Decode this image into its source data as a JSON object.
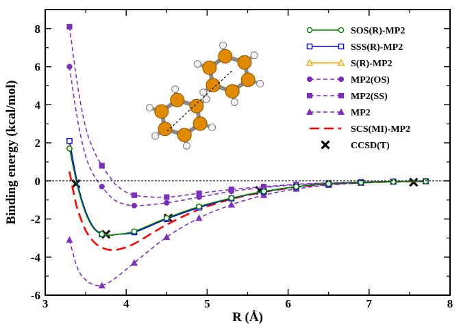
{
  "chart_data": {
    "type": "line",
    "xlabel": "R (Å)",
    "ylabel": "Binding energy (kcal/mol)",
    "xlim": [
      3,
      8
    ],
    "ylim": [
      -6,
      9
    ],
    "x_ticks": [
      "3",
      "4",
      "5",
      "6",
      "7",
      "8"
    ],
    "y_ticks": [
      "-6",
      "-4",
      "-2",
      "0",
      "2",
      "4",
      "6",
      "8"
    ],
    "grid": false,
    "zero_line": true,
    "legend_position": "top-right",
    "series": [
      {
        "name": "SOS(R)-MP2",
        "color": "#008000",
        "dash": "solid",
        "marker": "circle-open",
        "x": [
          3.3,
          3.4,
          3.5,
          3.6,
          3.7,
          3.8,
          3.9,
          4.1,
          4.5,
          4.9,
          5.3,
          5.7,
          6.1,
          6.5,
          6.9,
          7.3,
          7.7
        ],
        "y": [
          1.7,
          -0.3,
          -1.7,
          -2.5,
          -2.8,
          -2.85,
          -2.8,
          -2.65,
          -1.95,
          -1.35,
          -0.9,
          -0.55,
          -0.3,
          -0.15,
          -0.08,
          -0.04,
          -0.02
        ],
        "marker_x": [
          3.3,
          3.7,
          4.1,
          4.5,
          4.9,
          5.3,
          5.7,
          6.1,
          6.5,
          6.9,
          7.3,
          7.7
        ],
        "marker_y": [
          1.7,
          -2.8,
          -2.65,
          -1.95,
          -1.35,
          -0.9,
          -0.55,
          -0.3,
          -0.15,
          -0.08,
          -0.04,
          -0.02
        ]
      },
      {
        "name": "SSS(R)-MP2",
        "color": "#0000ff",
        "dash": "solid",
        "marker": "square-open",
        "x": [
          3.3,
          3.4,
          3.5,
          3.6,
          3.7,
          3.8,
          3.9,
          4.1,
          4.5,
          4.9,
          5.3,
          5.7,
          6.1,
          6.5,
          6.9,
          7.3,
          7.7
        ],
        "y": [
          2.1,
          -0.15,
          -1.6,
          -2.45,
          -2.8,
          -2.85,
          -2.8,
          -2.7,
          -2.0,
          -1.4,
          -0.92,
          -0.57,
          -0.31,
          -0.16,
          -0.08,
          -0.04,
          -0.02
        ],
        "marker_x": [
          3.3,
          3.7,
          4.1,
          4.5,
          4.9,
          5.3,
          5.7,
          6.1,
          6.5,
          6.9,
          7.3,
          7.7
        ],
        "marker_y": [
          2.1,
          -2.8,
          -2.7,
          -2.0,
          -1.4,
          -0.92,
          -0.57,
          -0.31,
          -0.16,
          -0.08,
          -0.04,
          -0.02
        ]
      },
      {
        "name": "S(R)-MP2",
        "color": "#ffa500",
        "dash": "solid",
        "marker": "triangle-open",
        "x": [
          3.3,
          3.4,
          3.5,
          3.6,
          3.7,
          3.8,
          3.9,
          4.1,
          4.5,
          4.9,
          5.3,
          5.7,
          6.1,
          6.5,
          6.9,
          7.3,
          7.7
        ],
        "y": [
          1.8,
          -0.25,
          -1.65,
          -2.45,
          -2.75,
          -2.85,
          -2.8,
          -2.65,
          -1.95,
          -1.35,
          -0.9,
          -0.55,
          -0.3,
          -0.15,
          -0.08,
          -0.04,
          -0.02
        ],
        "marker_x": [
          3.3,
          3.7,
          4.1,
          4.5,
          4.9,
          5.3,
          5.7,
          6.1,
          6.5,
          6.9,
          7.3,
          7.7
        ],
        "marker_y": [
          1.8,
          -2.75,
          -2.65,
          -1.95,
          -1.35,
          -0.9,
          -0.55,
          -0.3,
          -0.15,
          -0.08,
          -0.04,
          -0.02
        ]
      },
      {
        "name": "MP2(OS)",
        "color": "#7b2fbf",
        "dash": "dashed",
        "marker": "circle-filled",
        "x": [
          3.3,
          3.4,
          3.5,
          3.6,
          3.7,
          3.8,
          3.9,
          4.1,
          4.5,
          4.9,
          5.3,
          5.7,
          6.1,
          6.5,
          6.9,
          7.3,
          7.7
        ],
        "y": [
          6.0,
          3.2,
          1.3,
          0.3,
          -0.3,
          -0.8,
          -1.1,
          -1.3,
          -1.15,
          -0.85,
          -0.55,
          -0.35,
          -0.2,
          -0.12,
          -0.06,
          -0.03,
          -0.01
        ],
        "marker_x": [
          3.3,
          3.7,
          4.1,
          4.5,
          4.9,
          5.3,
          5.7,
          6.1,
          6.5,
          6.9,
          7.3,
          7.7
        ],
        "marker_y": [
          6.0,
          -0.3,
          -1.3,
          -1.15,
          -0.85,
          -0.55,
          -0.35,
          -0.2,
          -0.12,
          -0.06,
          -0.03,
          -0.01
        ]
      },
      {
        "name": "MP2(SS)",
        "color": "#7b2fbf",
        "dash": "dashed",
        "marker": "square-filled",
        "x": [
          3.3,
          3.4,
          3.5,
          3.6,
          3.7,
          3.8,
          3.9,
          4.1,
          4.5,
          4.9,
          5.3,
          5.7,
          6.1,
          6.5,
          6.9,
          7.3,
          7.7
        ],
        "y": [
          8.1,
          5.0,
          2.8,
          1.6,
          0.8,
          0.2,
          -0.3,
          -0.75,
          -0.85,
          -0.65,
          -0.45,
          -0.3,
          -0.18,
          -0.1,
          -0.05,
          -0.03,
          -0.01
        ],
        "marker_x": [
          3.3,
          3.7,
          4.1,
          4.5,
          4.9,
          5.3,
          5.7,
          6.1,
          6.5,
          6.9,
          7.3,
          7.7
        ],
        "marker_y": [
          8.1,
          0.8,
          -0.75,
          -0.85,
          -0.65,
          -0.45,
          -0.3,
          -0.18,
          -0.1,
          -0.05,
          -0.03,
          -0.01
        ]
      },
      {
        "name": "MP2",
        "color": "#7b2fbf",
        "dash": "dashed",
        "marker": "triangle-filled",
        "x": [
          3.3,
          3.4,
          3.5,
          3.6,
          3.7,
          3.8,
          3.9,
          4.1,
          4.5,
          4.9,
          5.3,
          5.7,
          6.1,
          6.5,
          6.9,
          7.3,
          7.7
        ],
        "y": [
          -3.1,
          -4.6,
          -5.2,
          -5.45,
          -5.5,
          -5.3,
          -5.0,
          -4.3,
          -2.95,
          -1.95,
          -1.25,
          -0.75,
          -0.42,
          -0.22,
          -0.11,
          -0.05,
          -0.02
        ],
        "marker_x": [
          3.3,
          3.7,
          4.1,
          4.5,
          4.9,
          5.3,
          5.7,
          6.1,
          6.5,
          6.9,
          7.3,
          7.7
        ],
        "marker_y": [
          -3.1,
          -5.5,
          -4.3,
          -2.95,
          -1.95,
          -1.25,
          -0.75,
          -0.42,
          -0.22,
          -0.11,
          -0.05,
          -0.02
        ]
      },
      {
        "name": "SCS(MI)-MP2",
        "color": "#ff0000",
        "dash": "longdash",
        "marker": "none",
        "x": [
          3.3,
          3.35,
          3.4,
          3.5,
          3.6,
          3.7,
          3.8,
          3.9,
          4.1,
          4.5,
          4.9,
          5.3,
          5.7,
          6.1,
          6.5,
          6.9,
          7.3,
          7.7
        ],
        "y": [
          0.5,
          -0.6,
          -1.5,
          -2.6,
          -3.2,
          -3.5,
          -3.62,
          -3.6,
          -3.3,
          -2.3,
          -1.5,
          -0.95,
          -0.58,
          -0.32,
          -0.17,
          -0.09,
          -0.04,
          -0.02
        ]
      },
      {
        "name": "CCSD(T)",
        "color": "#000000",
        "dash": "none",
        "marker": "x",
        "marker_x": [
          3.38,
          3.75,
          4.52,
          5.65,
          7.55
        ],
        "marker_y": [
          -0.15,
          -2.8,
          -1.95,
          -0.5,
          -0.07
        ]
      }
    ]
  }
}
